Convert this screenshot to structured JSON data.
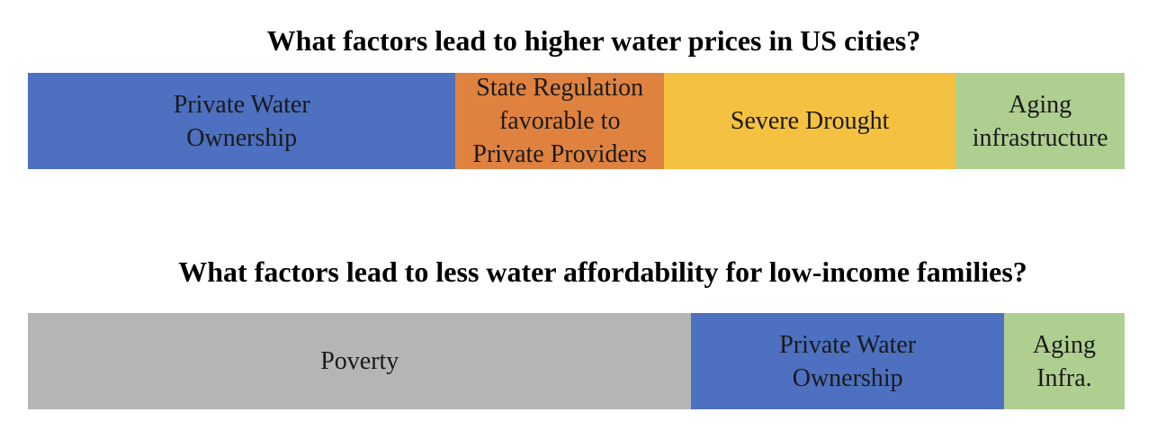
{
  "chart_data": [
    {
      "type": "bar",
      "orientation": "horizontal-stacked",
      "title": "What factors lead to higher water prices in US cities?",
      "segments": [
        {
          "label": "Private Water\nOwnership",
          "value": 39,
          "color": "#4d70c0"
        },
        {
          "label": "State Regulation\nfavorable to\nPrivate Providers",
          "value": 19,
          "color": "#e0823f"
        },
        {
          "label": "Severe Drought",
          "value": 26.6,
          "color": "#f5c140"
        },
        {
          "label": "Aging\ninfrastructure",
          "value": 15.4,
          "color": "#afcf91"
        }
      ]
    },
    {
      "type": "bar",
      "orientation": "horizontal-stacked",
      "title": "What factors lead to less water affordability for low-income families?",
      "segments": [
        {
          "label": "Poverty",
          "value": 60.5,
          "color": "#b5b5b5"
        },
        {
          "label": "Private Water\nOwnership",
          "value": 28.5,
          "color": "#4d70c0"
        },
        {
          "label": "Aging\nInfra.",
          "value": 11,
          "color": "#afcf91"
        }
      ]
    }
  ]
}
